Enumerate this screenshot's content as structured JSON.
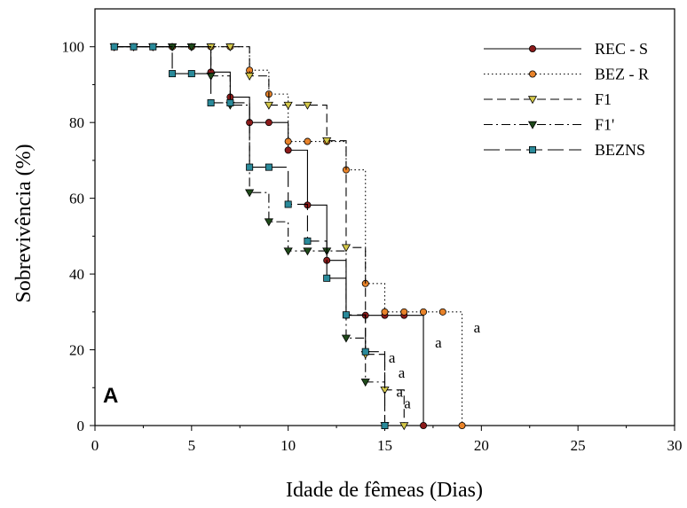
{
  "chart_data": {
    "type": "line",
    "step": true,
    "panel_label": "A",
    "xlabel": "Idade de fêmeas (Dias)",
    "ylabel": "Sobrevivência (%)",
    "xlim": [
      0,
      30
    ],
    "ylim": [
      0,
      110
    ],
    "x_ticks": [
      0,
      5,
      10,
      15,
      20,
      25,
      30
    ],
    "y_ticks": [
      0,
      20,
      40,
      60,
      80,
      100
    ],
    "grid": false,
    "legend_position": "top-right",
    "series": [
      {
        "name": "REC - S",
        "color": "#8b1a1a",
        "dash": "solid",
        "marker": "circle",
        "x": [
          1,
          2,
          3,
          4,
          5,
          6,
          7,
          8,
          9,
          10,
          11,
          12,
          13,
          14,
          15,
          16,
          17
        ],
        "y": [
          100,
          100,
          100,
          100,
          100,
          93.3,
          86.7,
          80,
          80,
          72.7,
          58.2,
          43.6,
          29.1,
          29.1,
          29.1,
          29.1,
          0
        ]
      },
      {
        "name": "BEZ - R",
        "color": "#e8832a",
        "dash": "dotted",
        "marker": "circle",
        "x": [
          1,
          2,
          3,
          4,
          5,
          6,
          7,
          8,
          9,
          10,
          11,
          12,
          13,
          14,
          15,
          16,
          17,
          18,
          19
        ],
        "y": [
          100,
          100,
          100,
          100,
          100,
          100,
          100,
          93.8,
          87.5,
          75,
          75,
          75,
          67.5,
          37.5,
          30,
          30,
          30,
          30,
          0
        ]
      },
      {
        "name": "F1",
        "color": "#d4c84a",
        "dash": "dashed",
        "marker": "triangle-down",
        "x": [
          1,
          2,
          3,
          4,
          5,
          6,
          7,
          8,
          9,
          10,
          11,
          12,
          13,
          14,
          15,
          16
        ],
        "y": [
          100,
          100,
          100,
          100,
          100,
          100,
          100,
          92.3,
          84.6,
          84.6,
          84.6,
          75.2,
          47,
          18.8,
          9.4,
          0
        ]
      },
      {
        "name": "F1'",
        "color": "#1f4a1a",
        "dash": "dashdot",
        "marker": "triangle-down",
        "x": [
          1,
          2,
          3,
          4,
          5,
          6,
          7,
          8,
          9,
          10,
          11,
          12,
          13,
          14,
          15
        ],
        "y": [
          100,
          100,
          100,
          100,
          100,
          92.3,
          84.6,
          61.5,
          53.8,
          46.1,
          46.1,
          46.1,
          23.1,
          11.5,
          0
        ]
      },
      {
        "name": "BEZNS",
        "color": "#2a8a9a",
        "dash": "longdash",
        "marker": "square",
        "x": [
          1,
          2,
          3,
          4,
          5,
          6,
          7,
          8,
          9,
          10,
          11,
          12,
          13,
          14,
          15
        ],
        "y": [
          100,
          100,
          100,
          92.9,
          92.9,
          85.2,
          85.2,
          68.2,
          68.2,
          58.4,
          48.7,
          38.9,
          29.2,
          19.5,
          0
        ]
      }
    ],
    "annotations": [
      {
        "text": "a",
        "x": 19.6,
        "y": 26
      },
      {
        "text": "a",
        "x": 17.6,
        "y": 22
      },
      {
        "text": "a",
        "x": 15.2,
        "y": 18
      },
      {
        "text": "a",
        "x": 15.7,
        "y": 14
      },
      {
        "text": "a",
        "x": 15.6,
        "y": 9
      },
      {
        "text": "a",
        "x": 16.0,
        "y": 6
      }
    ]
  }
}
